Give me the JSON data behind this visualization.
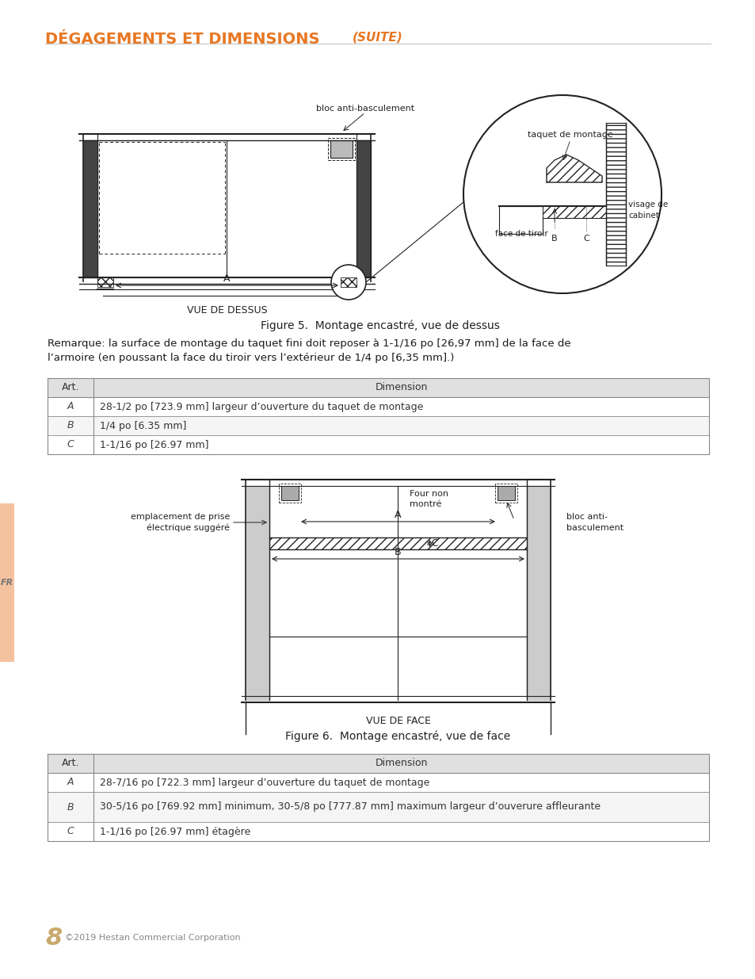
{
  "title_main": "DÉGAGEMENTS ET DIMENSIONS",
  "title_italic": "(SUITE)",
  "title_color": "#E87722",
  "page_bg": "#FFFFFF",
  "left_bar_color": "#F5C2A0",
  "page_number": "8",
  "page_number_color": "#C9A96E",
  "copyright": "©2019 Hestan Commercial Corporation",
  "fig5_caption_small": "VUE DE DESSUS",
  "fig5_caption": "Figure 5.  Montage encastré, vue de dessus",
  "fig5_note_line1": "Remarque: la surface de montage du taquet fini doit reposer à 1-1/16 po [26,97 mm] de la face de",
  "fig5_note_line2": "l’armoire (en poussant la face du tiroir vers l’extérieur de 1/4 po [6,35 mm].)",
  "table1_header": [
    "Art.",
    "Dimension"
  ],
  "table1_rows": [
    [
      "A",
      "28-1/2 po [723.9 mm] largeur d’ouverture du taquet de montage"
    ],
    [
      "B",
      "1/4 po [6.35 mm]"
    ],
    [
      "C",
      "1-1/16 po [26.97 mm]"
    ]
  ],
  "fig6_caption_small": "VUE DE FACE",
  "fig6_caption": "Figure 6.  Montage encastré, vue de face",
  "table2_header": [
    "Art.",
    "Dimension"
  ],
  "table2_rows": [
    [
      "A",
      "28-7/16 po [722.3 mm] largeur d’ouverture du taquet de montage"
    ],
    [
      "B",
      "30-5/16 po [769.92 mm] minimum, 30-5/8 po [777.87 mm] maximum largeur d’ouverure affleurante"
    ],
    [
      "C",
      "1-1/16 po [26.97 mm] étagère"
    ]
  ],
  "table_header_bg": "#E8E8E8",
  "table_border": "#888888",
  "text_color": "#1a1a1a",
  "diag_color": "#222222",
  "gray_fill": "#AAAAAA",
  "hatch_fill": "#888888"
}
